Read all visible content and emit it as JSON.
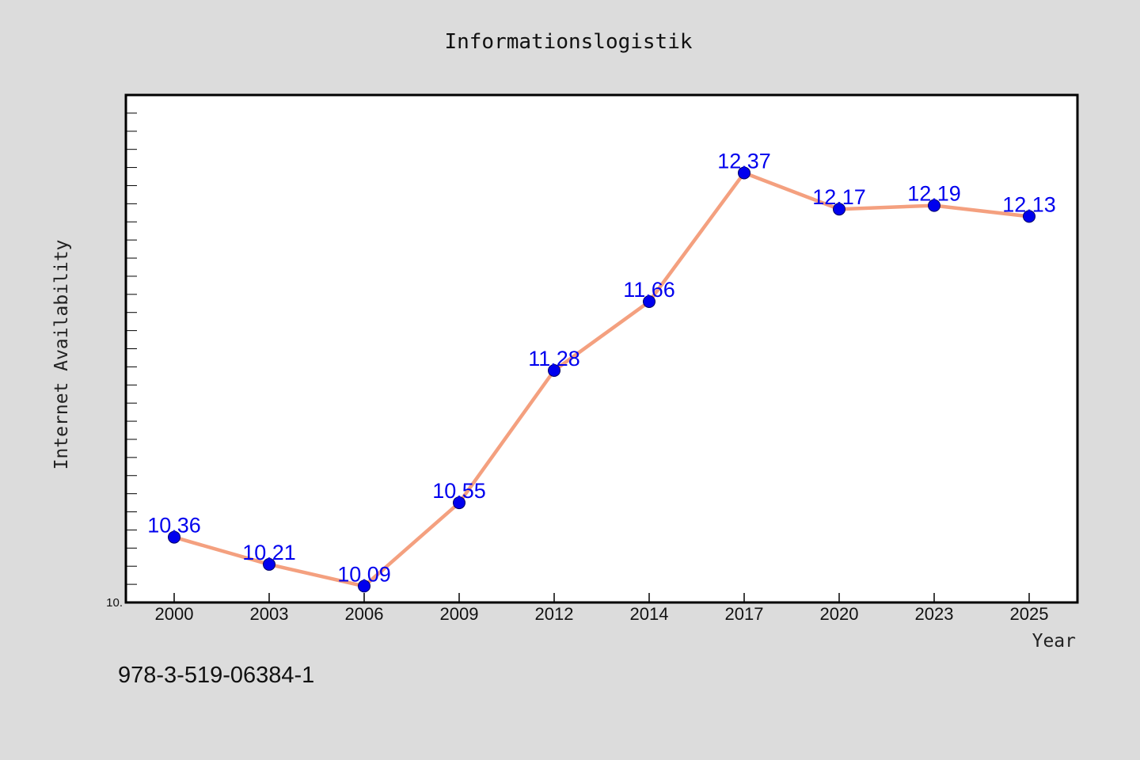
{
  "chart_data": {
    "type": "line",
    "title": "Informationslogistik",
    "xlabel": "Year",
    "ylabel": "Internet Availability",
    "categories": [
      "2000",
      "2003",
      "2006",
      "2009",
      "2012",
      "2014",
      "2017",
      "2020",
      "2023",
      "2025"
    ],
    "series": [
      {
        "values": [
          10.36,
          10.21,
          10.09,
          10.55,
          11.28,
          11.66,
          12.37,
          12.17,
          12.19,
          12.13
        ]
      }
    ],
    "data_labels": [
      "10.36",
      "10.21",
      "10.09",
      "10.55",
      "11.28",
      "11.66",
      "12.37",
      "12.17",
      "12.19",
      "12.13"
    ],
    "ylim": [
      10.0,
      12.8
    ],
    "y_tick_labels": [
      {
        "value": 10.0,
        "label": "10."
      }
    ],
    "y_minor_tick_step": 0.1,
    "grid": false,
    "legend": "none"
  },
  "footnote": "978-3-519-06384-1",
  "colors": {
    "background": "#dcdcdc",
    "plot_background": "#ffffff",
    "line": "#f4a07f",
    "marker": "#0000ee",
    "data_label": "#0000ee",
    "frame": "#000000"
  }
}
